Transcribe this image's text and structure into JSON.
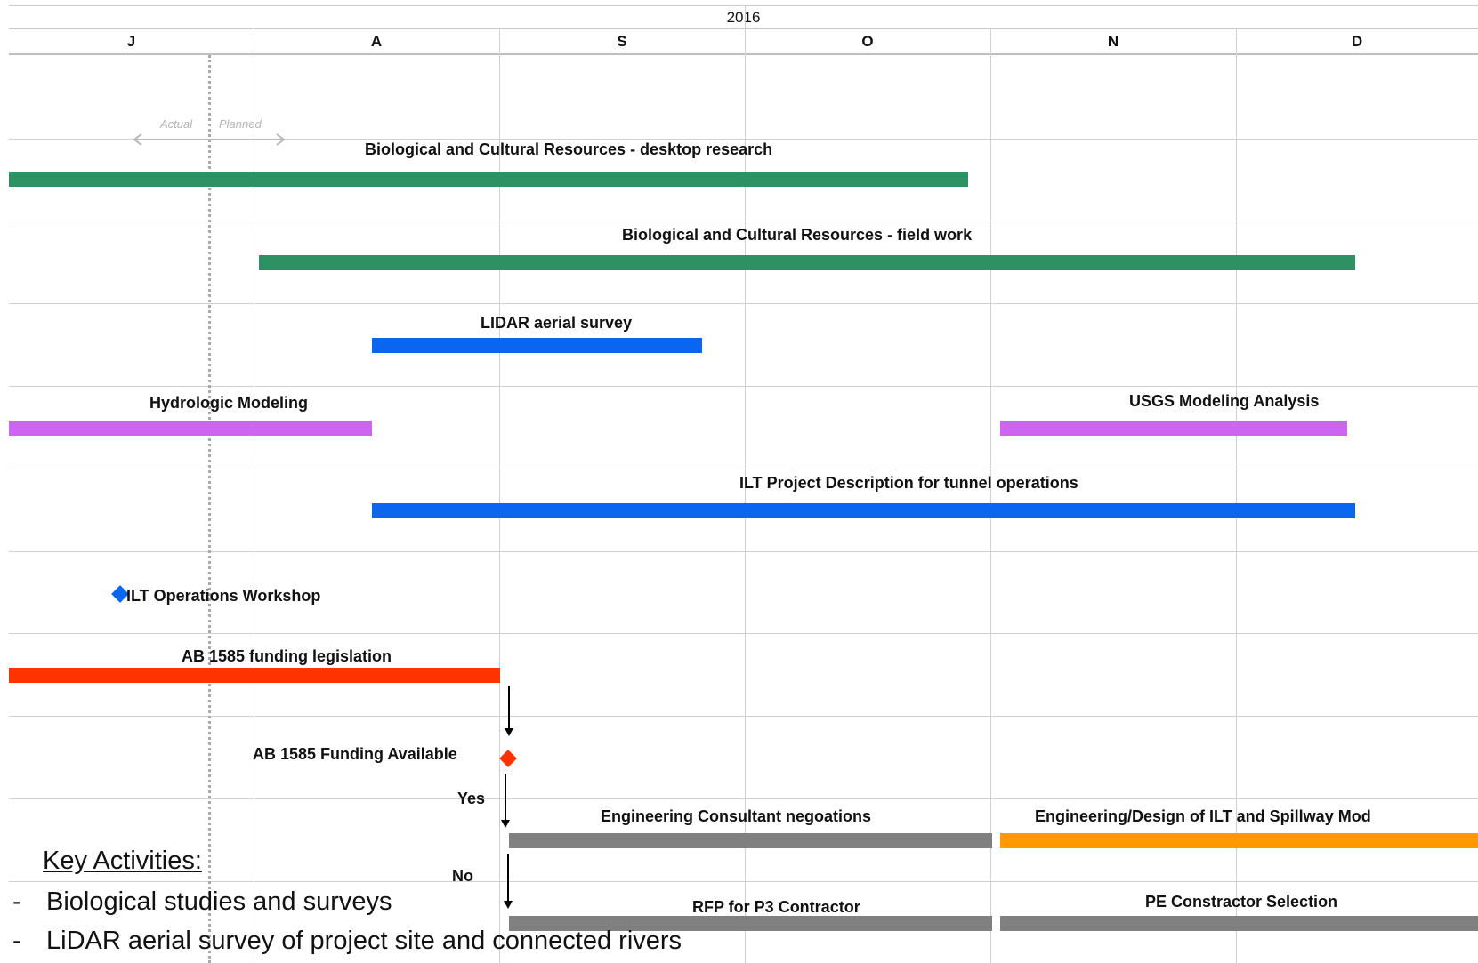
{
  "header": {
    "year": "2016"
  },
  "months": [
    "J",
    "A",
    "S",
    "O",
    "N",
    "D"
  ],
  "annotation": {
    "actual": "Actual",
    "planned": "Planned"
  },
  "activities": [
    {
      "label": "Biological and Cultural Resources - desktop research",
      "start": "Jul",
      "end": "late Oct",
      "color": "#2e9163"
    },
    {
      "label": "Biological and Cultural Resources - field work",
      "start": "Aug",
      "end": "mid Dec",
      "color": "#2e9163"
    },
    {
      "label": "LIDAR aerial survey",
      "start": "mid Aug",
      "end": "late Sep",
      "color": "#0a66f0"
    },
    {
      "label": "Hydrologic Modeling",
      "start": "Jul",
      "end": "mid Aug",
      "color": "#cc66f2"
    },
    {
      "label": "USGS Modeling Analysis",
      "start": "Nov",
      "end": "mid Dec",
      "color": "#cc66f2"
    },
    {
      "label": "ILT Project Description for tunnel operations",
      "start": "mid Aug",
      "end": "mid Dec",
      "color": "#0a66f0"
    },
    {
      "label": "AB 1585 funding legislation",
      "start": "Jul",
      "end": "Sep",
      "color": "#ff3300"
    },
    {
      "label": "Engineering Consultant negoations",
      "start": "Sep",
      "end": "Nov",
      "color": "#808080"
    },
    {
      "label": "Engineering/Design of ILT and Spillway Mod",
      "start": "Nov",
      "end": "Dec",
      "color": "#ff9900"
    },
    {
      "label": "RFP for P3 Contractor",
      "start": "Sep",
      "end": "Nov",
      "color": "#808080"
    },
    {
      "label": "PE Constractor Selection",
      "start": "Nov",
      "end": "Dec",
      "color": "#808080"
    }
  ],
  "milestones": [
    {
      "label": "ILT  Operations Workshop",
      "color": "#0a66f0"
    },
    {
      "label": "AB 1585 Funding Available",
      "color": "#ff3300"
    }
  ],
  "branches": {
    "yes": "Yes",
    "no": "No"
  },
  "key": {
    "title": "Key Activities:",
    "dash": "-",
    "items": [
      "Biological studies and surveys",
      "LiDAR aerial survey of project site and connected rivers"
    ]
  }
}
